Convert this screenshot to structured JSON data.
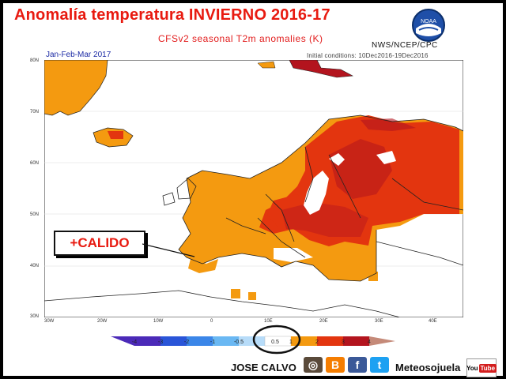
{
  "title": "Anomalía temperatura INVIERNO 2016-17",
  "subtitle": "CFSv2 seasonal T2m anomalies (K)",
  "credit": "NWS/NCEP/CPC",
  "logo_label": "NOAA",
  "period": "Jan-Feb-Mar 2017",
  "initial_conditions": "Initial conditions: 10Dec2016-19Dec2016",
  "annotation": "+CALIDO",
  "map": {
    "lat_labels": [
      "80N",
      "70N",
      "60N",
      "50N",
      "40N",
      "30N"
    ],
    "lon_labels": [
      "30W",
      "20W",
      "10W",
      "0",
      "10E",
      "20E",
      "30E",
      "40E"
    ],
    "colors": {
      "land": "#ffffff",
      "ocean": "#ffffff",
      "border": "#222222",
      "warm_low": "#f49a10",
      "warm_mid": "#e3350f",
      "warm_high": "#b3141e"
    }
  },
  "colorbar": {
    "labels": [
      "-4",
      "-3",
      "-2",
      "-1",
      "-0.5",
      "0.5",
      "1",
      "2",
      "3",
      "4"
    ],
    "colors": [
      "#4b2ab8",
      "#2a55d8",
      "#3b86e8",
      "#6ab8f3",
      "#b7dcf9",
      "#ffffff",
      "#f49a10",
      "#e3350f",
      "#b3141e",
      "#c58a79"
    ],
    "highlighted": "0.5"
  },
  "footer": {
    "author": "JOSE CALVO",
    "brand": "Meteosojuela",
    "social": [
      {
        "name": "instagram-icon",
        "glyph": "◎",
        "color": "#5a4a3a"
      },
      {
        "name": "blogger-icon",
        "glyph": "B",
        "color": "#f57d00"
      },
      {
        "name": "facebook-icon",
        "glyph": "f",
        "color": "#3b5998"
      },
      {
        "name": "twitter-icon",
        "glyph": "t",
        "color": "#1da1f2"
      }
    ],
    "youtube": {
      "text1": "You",
      "text2": "Tube"
    }
  }
}
